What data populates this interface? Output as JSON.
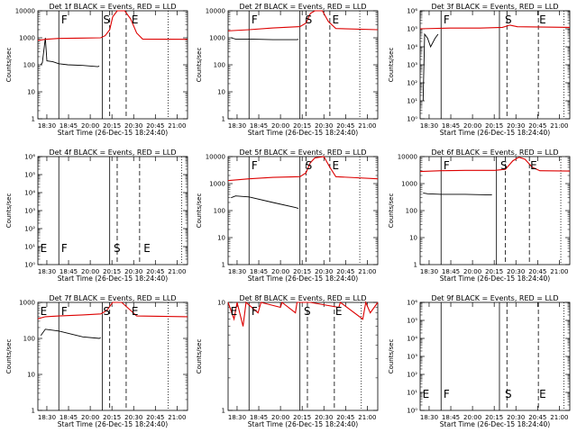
{
  "colors": {
    "events": "#000000",
    "lld": "#dd0000"
  },
  "x_ticks": [
    "18:30",
    "18:45",
    "20:00",
    "20:15",
    "20:30",
    "20:45",
    "21:00"
  ],
  "xlabel": "Start Time (26-Dec-15 18:24:40)",
  "ylabel": "Counts/sec",
  "chart_data": [
    {
      "type": "line",
      "title": "Det 1f BLACK = Events, RED = LLD",
      "y_ticks": [
        "1",
        "10",
        "100",
        "1000",
        "10000"
      ],
      "log_range": [
        0,
        4
      ],
      "labels": [
        [
          "F",
          0.15
        ],
        [
          "S",
          0.43
        ],
        [
          "E",
          0.62
        ]
      ],
      "vlines": [
        {
          "x": 0.14,
          "style": "solid"
        },
        {
          "x": 0.43,
          "style": "solid"
        },
        {
          "x": 0.48,
          "style": "dashed"
        },
        {
          "x": 0.59,
          "style": "dashed"
        },
        {
          "x": 0.87,
          "style": "dotted"
        }
      ],
      "series": [
        {
          "name": "Events",
          "color": "events",
          "points": [
            [
              0.02,
              100
            ],
            [
              0.025,
              110
            ],
            [
              0.03,
              120
            ],
            [
              0.05,
              1000
            ],
            [
              0.06,
              140
            ],
            [
              0.1,
              130
            ],
            [
              0.14,
              110
            ],
            [
              0.2,
              100
            ],
            [
              0.3,
              95
            ],
            [
              0.4,
              85
            ],
            [
              0.41,
              90
            ]
          ]
        },
        {
          "name": "LLD",
          "color": "lld",
          "points": [
            [
              0.0,
              800
            ],
            [
              0.05,
              880
            ],
            [
              0.14,
              950
            ],
            [
              0.3,
              980
            ],
            [
              0.42,
              1000
            ],
            [
              0.45,
              1200
            ],
            [
              0.48,
              2000
            ],
            [
              0.5,
              6000
            ],
            [
              0.53,
              10000
            ],
            [
              0.58,
              10000
            ],
            [
              0.62,
              5000
            ],
            [
              0.66,
              1500
            ],
            [
              0.7,
              900
            ],
            [
              1.0,
              880
            ]
          ]
        }
      ]
    },
    {
      "type": "line",
      "title": "Det 2f BLACK = Events, RED = LLD",
      "y_ticks": [
        "1",
        "10",
        "100",
        "1000",
        "10000"
      ],
      "log_range": [
        0,
        4
      ],
      "labels": [
        [
          "F",
          0.15
        ],
        [
          "S",
          0.51
        ],
        [
          "E",
          0.69
        ]
      ],
      "vlines": [
        {
          "x": 0.14,
          "style": "solid"
        },
        {
          "x": 0.48,
          "style": "solid"
        },
        {
          "x": 0.52,
          "style": "dashed"
        },
        {
          "x": 0.68,
          "style": "dashed"
        },
        {
          "x": 0.88,
          "style": "dotted"
        }
      ],
      "series": [
        {
          "name": "Events",
          "color": "events",
          "points": [
            [
              0.02,
              1000
            ],
            [
              0.05,
              900
            ],
            [
              0.14,
              900
            ],
            [
              0.3,
              850
            ],
            [
              0.46,
              850
            ],
            [
              0.47,
              880
            ]
          ]
        },
        {
          "name": "LLD",
          "color": "lld",
          "points": [
            [
              0.0,
              1800
            ],
            [
              0.14,
              2000
            ],
            [
              0.3,
              2300
            ],
            [
              0.48,
              2600
            ],
            [
              0.52,
              3500
            ],
            [
              0.55,
              8000
            ],
            [
              0.58,
              10000
            ],
            [
              0.63,
              10000
            ],
            [
              0.67,
              4000
            ],
            [
              0.72,
              2200
            ],
            [
              1.0,
              2000
            ]
          ]
        }
      ]
    },
    {
      "type": "line",
      "title": "Det 3f BLACK = Events, RED = LLD",
      "y_ticks": [
        "10⁰",
        "10¹",
        "10²",
        "10³",
        "10⁴",
        "10⁵",
        "10⁶"
      ],
      "log_range": [
        0,
        6
      ],
      "labels": [
        [
          "F",
          0.15
        ],
        [
          "S",
          0.56
        ],
        [
          "E",
          0.79
        ]
      ],
      "vlines": [
        {
          "x": 0.14,
          "style": "solid"
        },
        {
          "x": 0.53,
          "style": "solid"
        },
        {
          "x": 0.58,
          "style": "dashed"
        },
        {
          "x": 0.79,
          "style": "dashed"
        },
        {
          "x": 0.96,
          "style": "dotted"
        }
      ],
      "series": [
        {
          "name": "Events",
          "color": "events",
          "points": [
            [
              0.02,
              10
            ],
            [
              0.03,
              50000
            ],
            [
              0.05,
              30000
            ],
            [
              0.07,
              10000
            ],
            [
              0.1,
              30000
            ],
            [
              0.12,
              50000
            ]
          ]
        },
        {
          "name": "LLD",
          "color": "lld",
          "points": [
            [
              0.0,
              100000
            ],
            [
              0.2,
              110000
            ],
            [
              0.4,
              110000
            ],
            [
              0.55,
              120000
            ],
            [
              0.6,
              160000
            ],
            [
              0.65,
              130000
            ],
            [
              1.0,
              120000
            ]
          ]
        }
      ]
    },
    {
      "type": "line",
      "title": "Det 4f BLACK = Events, RED = LLD",
      "y_ticks": [
        "10⁰",
        "10¹",
        "10²",
        "10³",
        "10⁴",
        "10⁵",
        "10⁶"
      ],
      "log_range": [
        0,
        6
      ],
      "labels": [
        [
          "E",
          0.01
        ],
        [
          "F",
          0.15
        ],
        [
          "S",
          0.5
        ],
        [
          "E",
          0.7
        ]
      ],
      "vlines": [
        {
          "x": 0.14,
          "style": "solid"
        },
        {
          "x": 0.48,
          "style": "solid"
        },
        {
          "x": 0.53,
          "style": "dashed"
        },
        {
          "x": 0.68,
          "style": "dashed"
        },
        {
          "x": 0.96,
          "style": "dotted"
        }
      ],
      "series": []
    },
    {
      "type": "line",
      "title": "Det 5f BLACK = Events, RED = LLD",
      "y_ticks": [
        "1",
        "10",
        "100",
        "1000",
        "10000"
      ],
      "log_range": [
        0,
        4
      ],
      "labels": [
        [
          "F",
          0.15
        ],
        [
          "S",
          0.51
        ],
        [
          "E",
          0.69
        ]
      ],
      "vlines": [
        {
          "x": 0.14,
          "style": "solid"
        },
        {
          "x": 0.48,
          "style": "solid"
        },
        {
          "x": 0.52,
          "style": "dashed"
        },
        {
          "x": 0.68,
          "style": "dashed"
        },
        {
          "x": 0.88,
          "style": "dotted"
        }
      ],
      "series": [
        {
          "name": "Events",
          "color": "events",
          "points": [
            [
              0.02,
              300
            ],
            [
              0.05,
              350
            ],
            [
              0.14,
              320
            ],
            [
              0.3,
              200
            ],
            [
              0.45,
              130
            ],
            [
              0.47,
              120
            ]
          ]
        },
        {
          "name": "LLD",
          "color": "lld",
          "points": [
            [
              0.0,
              1300
            ],
            [
              0.14,
              1500
            ],
            [
              0.3,
              1700
            ],
            [
              0.48,
              1800
            ],
            [
              0.52,
              2500
            ],
            [
              0.55,
              6000
            ],
            [
              0.58,
              9000
            ],
            [
              0.64,
              10000
            ],
            [
              0.68,
              4000
            ],
            [
              0.72,
              1800
            ],
            [
              1.0,
              1500
            ]
          ]
        }
      ]
    },
    {
      "type": "line",
      "title": "Det 6f BLACK = Events, RED = LLD",
      "y_ticks": [
        "1",
        "10",
        "100",
        "1000",
        "10000"
      ],
      "log_range": [
        0,
        4
      ],
      "labels": [
        [
          "F",
          0.15
        ],
        [
          "S",
          0.53
        ],
        [
          "E",
          0.73
        ]
      ],
      "vlines": [
        {
          "x": 0.14,
          "style": "solid"
        },
        {
          "x": 0.51,
          "style": "solid"
        },
        {
          "x": 0.57,
          "style": "dashed"
        },
        {
          "x": 0.73,
          "style": "dashed"
        },
        {
          "x": 0.94,
          "style": "dotted"
        }
      ],
      "series": [
        {
          "name": "Events",
          "color": "events",
          "points": [
            [
              0.02,
              450
            ],
            [
              0.05,
              420
            ],
            [
              0.14,
              400
            ],
            [
              0.3,
              400
            ],
            [
              0.47,
              380
            ],
            [
              0.48,
              390
            ]
          ]
        },
        {
          "name": "LLD",
          "color": "lld",
          "points": [
            [
              0.0,
              2800
            ],
            [
              0.14,
              3000
            ],
            [
              0.3,
              3100
            ],
            [
              0.5,
              3100
            ],
            [
              0.57,
              3400
            ],
            [
              0.62,
              7000
            ],
            [
              0.66,
              9500
            ],
            [
              0.7,
              8000
            ],
            [
              0.75,
              4000
            ],
            [
              0.8,
              3000
            ],
            [
              1.0,
              2900
            ]
          ]
        }
      ]
    },
    {
      "type": "line",
      "title": "Det 7f BLACK = Events, RED = LLD",
      "y_ticks": [
        "1",
        "10",
        "100",
        "1000"
      ],
      "log_range": [
        0,
        3
      ],
      "labels": [
        [
          "E",
          0.01
        ],
        [
          "F",
          0.15
        ],
        [
          "S",
          0.43
        ],
        [
          "E",
          0.62
        ]
      ],
      "vlines": [
        {
          "x": 0.14,
          "style": "solid"
        },
        {
          "x": 0.43,
          "style": "solid"
        },
        {
          "x": 0.48,
          "style": "dashed"
        },
        {
          "x": 0.59,
          "style": "dashed"
        },
        {
          "x": 0.87,
          "style": "dotted"
        }
      ],
      "series": [
        {
          "name": "Events",
          "color": "events",
          "points": [
            [
              0.02,
              120
            ],
            [
              0.05,
              180
            ],
            [
              0.14,
              160
            ],
            [
              0.3,
              110
            ],
            [
              0.41,
              100
            ],
            [
              0.42,
              105
            ]
          ]
        },
        {
          "name": "LLD",
          "color": "lld",
          "points": [
            [
              0.0,
              350
            ],
            [
              0.05,
              400
            ],
            [
              0.14,
              420
            ],
            [
              0.3,
              450
            ],
            [
              0.42,
              480
            ],
            [
              0.46,
              600
            ],
            [
              0.5,
              1000
            ],
            [
              0.56,
              1000
            ],
            [
              0.62,
              600
            ],
            [
              0.66,
              420
            ],
            [
              1.0,
              400
            ]
          ]
        }
      ]
    },
    {
      "type": "line",
      "title": "Det 8f BLACK = Events, RED = LLD",
      "y_ticks": [
        "1",
        "10"
      ],
      "log_range": [
        0,
        1
      ],
      "labels": [
        [
          "E",
          0.01
        ],
        [
          "F",
          0.15
        ],
        [
          "S",
          0.5
        ],
        [
          "E",
          0.71
        ]
      ],
      "vlines": [
        {
          "x": 0.14,
          "style": "solid"
        },
        {
          "x": 0.48,
          "style": "solid"
        },
        {
          "x": 0.53,
          "style": "dashed"
        },
        {
          "x": 0.71,
          "style": "dashed"
        },
        {
          "x": 0.89,
          "style": "dotted"
        }
      ],
      "series": [
        {
          "name": "LLD",
          "color": "lld",
          "points": [
            [
              0.0,
              10
            ],
            [
              0.04,
              7
            ],
            [
              0.06,
              10
            ],
            [
              0.1,
              6
            ],
            [
              0.12,
              10
            ],
            [
              0.2,
              8
            ],
            [
              0.22,
              10
            ],
            [
              0.35,
              9
            ],
            [
              0.36,
              10
            ],
            [
              0.45,
              8
            ],
            [
              0.46,
              10
            ],
            [
              0.55,
              10
            ],
            [
              0.74,
              9
            ],
            [
              0.75,
              10
            ],
            [
              0.9,
              7
            ],
            [
              0.92,
              10
            ],
            [
              0.95,
              8
            ],
            [
              1.0,
              10
            ]
          ]
        }
      ]
    },
    {
      "type": "line",
      "title": "Det 9f BLACK = Events, RED = LLD",
      "y_ticks": [
        "10⁰",
        "10¹",
        "10²",
        "10³",
        "10⁴",
        "10⁵",
        "10⁶"
      ],
      "log_range": [
        0,
        6
      ],
      "labels": [
        [
          "E",
          0.01
        ],
        [
          "F",
          0.15
        ],
        [
          "S",
          0.56
        ],
        [
          "E",
          0.79
        ]
      ],
      "vlines": [
        {
          "x": 0.14,
          "style": "solid"
        },
        {
          "x": 0.53,
          "style": "solid"
        },
        {
          "x": 0.58,
          "style": "dashed"
        },
        {
          "x": 0.79,
          "style": "dashed"
        },
        {
          "x": 0.96,
          "style": "dotted"
        }
      ],
      "series": []
    }
  ]
}
